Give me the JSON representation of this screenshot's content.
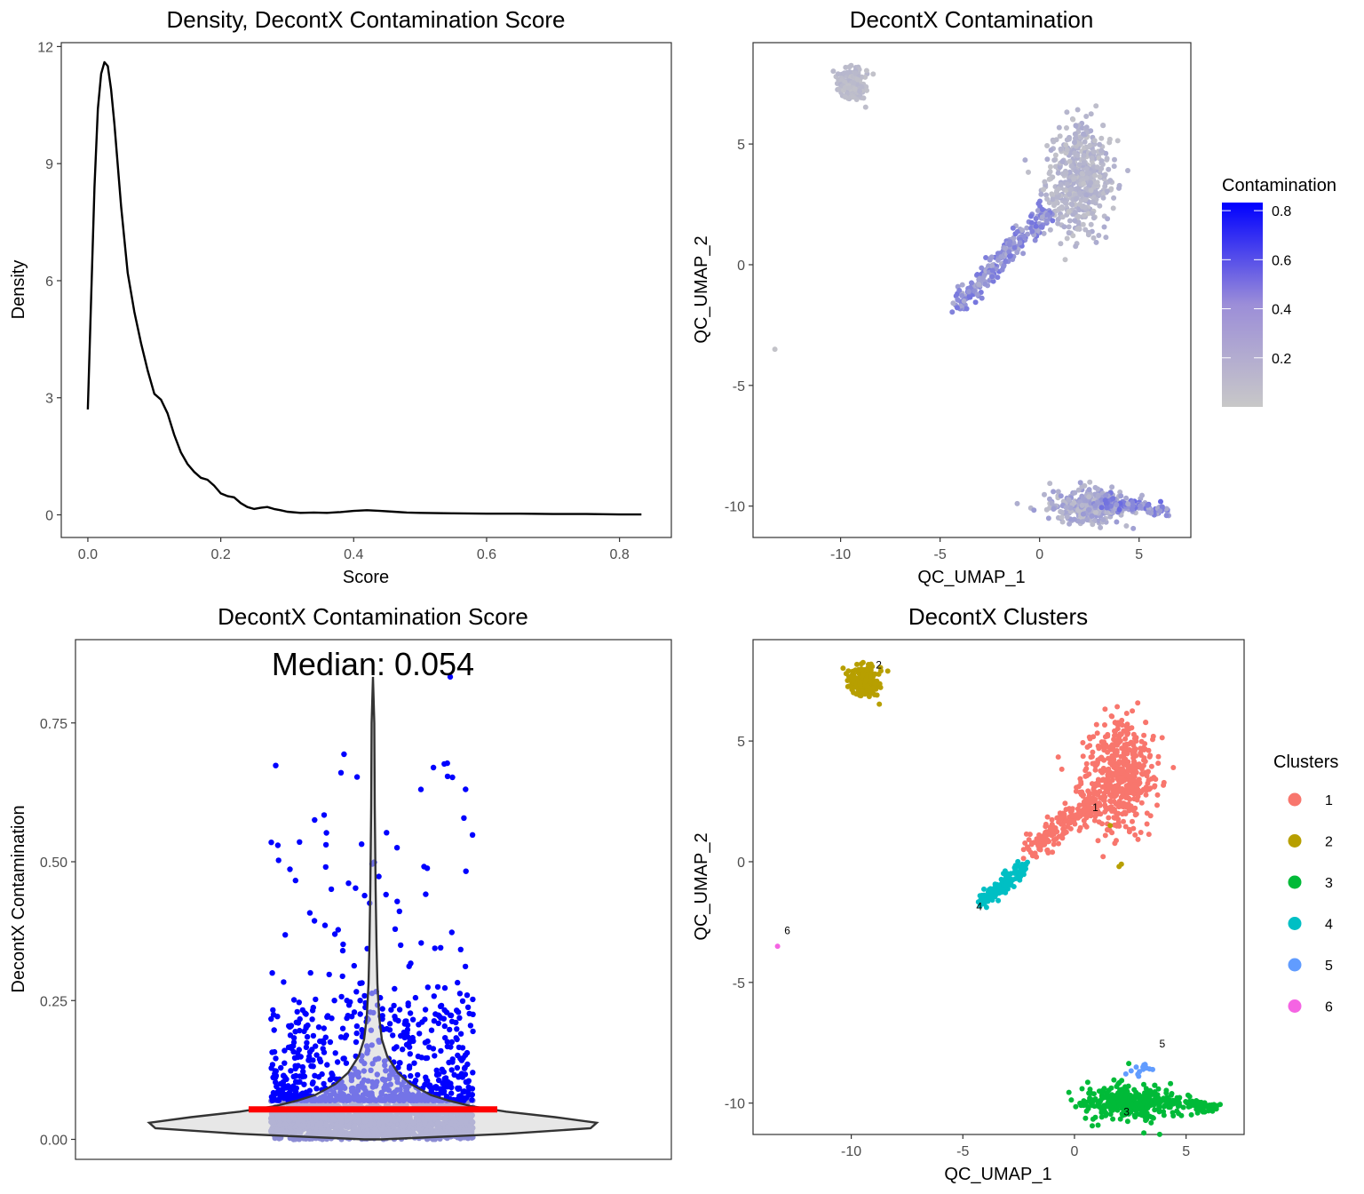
{
  "chart_data": [
    {
      "type": "line",
      "title": "Density, DecontX Contamination Score",
      "xlabel": "Score",
      "ylabel": "Density",
      "xlim": [
        -0.04,
        0.878
      ],
      "ylim": [
        -0.58,
        12.1
      ],
      "xticks": [
        0.0,
        0.2,
        0.4,
        0.6,
        0.8
      ],
      "xtick_labels": [
        "0.0",
        "0.2",
        "0.4",
        "0.6",
        "0.8"
      ],
      "yticks": [
        0,
        3,
        6,
        9,
        12
      ],
      "ytick_labels": [
        "0",
        "3",
        "6",
        "9",
        "12"
      ],
      "grid": false,
      "series": [
        {
          "x": [
            0.0,
            0.005,
            0.01,
            0.015,
            0.02,
            0.025,
            0.03,
            0.035,
            0.04,
            0.05,
            0.06,
            0.07,
            0.08,
            0.09,
            0.1,
            0.11,
            0.12,
            0.13,
            0.14,
            0.15,
            0.16,
            0.17,
            0.18,
            0.19,
            0.2,
            0.21,
            0.22,
            0.23,
            0.24,
            0.25,
            0.26,
            0.27,
            0.28,
            0.29,
            0.3,
            0.32,
            0.34,
            0.36,
            0.38,
            0.4,
            0.42,
            0.44,
            0.46,
            0.48,
            0.5,
            0.55,
            0.6,
            0.65,
            0.7,
            0.75,
            0.8,
            0.833
          ],
          "y": [
            2.7,
            5.6,
            8.4,
            10.4,
            11.3,
            11.6,
            11.5,
            10.9,
            10.0,
            7.9,
            6.2,
            5.2,
            4.4,
            3.7,
            3.1,
            2.95,
            2.6,
            2.05,
            1.6,
            1.3,
            1.1,
            0.95,
            0.9,
            0.75,
            0.55,
            0.48,
            0.45,
            0.3,
            0.2,
            0.15,
            0.18,
            0.2,
            0.15,
            0.12,
            0.08,
            0.05,
            0.06,
            0.05,
            0.07,
            0.1,
            0.12,
            0.1,
            0.08,
            0.06,
            0.05,
            0.04,
            0.03,
            0.03,
            0.02,
            0.02,
            0.01,
            0.01
          ]
        }
      ]
    },
    {
      "type": "scatter",
      "title": "DecontX Contamination",
      "xlabel": "QC_UMAP_1",
      "ylabel": "QC_UMAP_2",
      "xlim": [
        -14.4,
        7.6
      ],
      "ylim": [
        -11.3,
        9.2
      ],
      "xticks": [
        -10,
        -5,
        0,
        5
      ],
      "xtick_labels": [
        "-10",
        "-5",
        "0",
        "5"
      ],
      "yticks": [
        -10,
        -5,
        0,
        5
      ],
      "ytick_labels": [
        "-10",
        "-5",
        "0",
        "5"
      ],
      "grid": false,
      "color_scale": {
        "title": "Contamination",
        "low": "#c8c8c8",
        "high": "#0000ff",
        "min": 0.0,
        "max": 0.833,
        "ticks": [
          0.2,
          0.4,
          0.6,
          0.8
        ],
        "tick_labels": [
          "0.2",
          "0.4",
          "0.6",
          "0.8"
        ]
      },
      "legend": "right"
    },
    {
      "type": "scatter",
      "title": "DecontX Contamination Score",
      "annotation": "Median: 0.054",
      "median": 0.054,
      "xlabel": "",
      "ylabel": "DecontX Contamination",
      "ylim": [
        -0.036,
        0.9
      ],
      "yticks": [
        0.0,
        0.25,
        0.5,
        0.75
      ],
      "ytick_labels": [
        "0.00",
        "0.25",
        "0.50",
        "0.75"
      ],
      "grid": false,
      "threshold_color_above": "#0000ff",
      "color_below": "#8c8cd4",
      "median_color": "#ff0000",
      "violin_fill": "#d3d3d3"
    },
    {
      "type": "scatter",
      "title": "DecontX Clusters",
      "xlabel": "QC_UMAP_1",
      "ylabel": "QC_UMAP_2",
      "xlim": [
        -14.4,
        7.6
      ],
      "ylim": [
        -11.3,
        9.2
      ],
      "xticks": [
        -10,
        -5,
        0,
        5
      ],
      "xtick_labels": [
        "-10",
        "-5",
        "0",
        "5"
      ],
      "yticks": [
        -10,
        -5,
        0,
        5
      ],
      "ytick_labels": [
        "-10",
        "-5",
        "0",
        "5"
      ],
      "grid": false,
      "legend": "right",
      "legend_title": "Clusters",
      "clusters": [
        {
          "name": "1",
          "color": "#f8766d",
          "label_xy": [
            0.8,
            2.1
          ]
        },
        {
          "name": "2",
          "color": "#b79f00",
          "label_xy": [
            -8.9,
            8.0
          ]
        },
        {
          "name": "3",
          "color": "#00ba38",
          "label_xy": [
            2.2,
            -10.5
          ]
        },
        {
          "name": "4",
          "color": "#00bfc4",
          "label_xy": [
            -4.4,
            -2.0
          ]
        },
        {
          "name": "5",
          "color": "#619cff",
          "label_xy": [
            3.8,
            -7.7
          ]
        },
        {
          "name": "6",
          "color": "#f564e3",
          "label_xy": [
            -13.0,
            -3.0
          ]
        }
      ]
    }
  ]
}
